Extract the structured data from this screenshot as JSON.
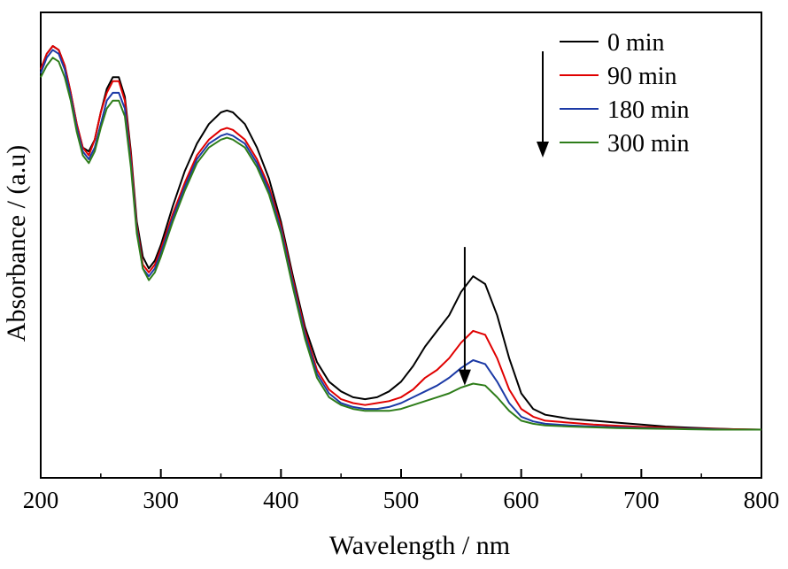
{
  "chart_data": {
    "type": "line",
    "title": "",
    "xlabel": "Wavelength / nm",
    "ylabel": "Absorbance / (a.u)",
    "xlim": [
      200,
      800
    ],
    "ylim": [
      0,
      1
    ],
    "xticks": [
      200,
      300,
      400,
      500,
      600,
      700,
      800
    ],
    "xtick_labels": [
      "200",
      "300",
      "400",
      "500",
      "600",
      "700",
      "800"
    ],
    "yticks_shown": false,
    "grid": false,
    "legend_position": "top-right",
    "annotations": [
      {
        "type": "arrow",
        "direction": "down",
        "location": "legend"
      },
      {
        "type": "arrow",
        "direction": "down",
        "x": 553,
        "y_from": 0.485,
        "y_to": 0.13
      }
    ],
    "series": [
      {
        "name": "0 min",
        "color": "#000000",
        "x": [
          200,
          205,
          210,
          215,
          220,
          225,
          230,
          235,
          240,
          245,
          250,
          255,
          260,
          265,
          270,
          275,
          280,
          285,
          290,
          295,
          300,
          310,
          320,
          330,
          340,
          350,
          355,
          360,
          370,
          380,
          390,
          400,
          410,
          420,
          430,
          440,
          450,
          460,
          470,
          480,
          490,
          500,
          510,
          520,
          530,
          540,
          550,
          560,
          570,
          580,
          590,
          600,
          610,
          620,
          640,
          660,
          680,
          700,
          720,
          740,
          760,
          780,
          800
        ],
        "y": [
          0.94,
          0.98,
          1.0,
          0.99,
          0.95,
          0.88,
          0.8,
          0.74,
          0.73,
          0.76,
          0.83,
          0.89,
          0.92,
          0.92,
          0.87,
          0.73,
          0.55,
          0.46,
          0.43,
          0.45,
          0.49,
          0.59,
          0.68,
          0.75,
          0.8,
          0.83,
          0.835,
          0.83,
          0.8,
          0.74,
          0.66,
          0.55,
          0.41,
          0.28,
          0.19,
          0.14,
          0.115,
          0.1,
          0.095,
          0.1,
          0.115,
          0.14,
          0.18,
          0.23,
          0.27,
          0.31,
          0.37,
          0.41,
          0.39,
          0.31,
          0.2,
          0.11,
          0.07,
          0.055,
          0.045,
          0.04,
          0.035,
          0.03,
          0.025,
          0.022,
          0.02,
          0.018,
          0.017
        ]
      },
      {
        "name": "90 min",
        "color": "#e00000",
        "x": [
          200,
          205,
          210,
          215,
          220,
          225,
          230,
          235,
          240,
          245,
          250,
          255,
          260,
          265,
          270,
          275,
          280,
          285,
          290,
          295,
          300,
          310,
          320,
          330,
          340,
          350,
          355,
          360,
          370,
          380,
          390,
          400,
          410,
          420,
          430,
          440,
          450,
          460,
          470,
          480,
          490,
          500,
          510,
          520,
          530,
          540,
          550,
          560,
          570,
          580,
          590,
          600,
          610,
          620,
          640,
          660,
          680,
          700,
          720,
          740,
          760,
          780,
          800
        ],
        "y": [
          0.94,
          0.98,
          1.0,
          0.99,
          0.95,
          0.88,
          0.8,
          0.74,
          0.72,
          0.76,
          0.83,
          0.88,
          0.91,
          0.91,
          0.86,
          0.72,
          0.54,
          0.44,
          0.42,
          0.44,
          0.48,
          0.57,
          0.65,
          0.72,
          0.76,
          0.785,
          0.79,
          0.785,
          0.76,
          0.71,
          0.64,
          0.54,
          0.4,
          0.27,
          0.17,
          0.12,
          0.095,
          0.085,
          0.08,
          0.085,
          0.09,
          0.1,
          0.12,
          0.15,
          0.17,
          0.2,
          0.24,
          0.27,
          0.26,
          0.2,
          0.12,
          0.07,
          0.05,
          0.04,
          0.035,
          0.03,
          0.027,
          0.024,
          0.022,
          0.02,
          0.019,
          0.018,
          0.017
        ]
      },
      {
        "name": "180 min",
        "color": "#1c3aa6",
        "x": [
          200,
          205,
          210,
          215,
          220,
          225,
          230,
          235,
          240,
          245,
          250,
          255,
          260,
          265,
          270,
          275,
          280,
          285,
          290,
          295,
          300,
          310,
          320,
          330,
          340,
          350,
          355,
          360,
          370,
          380,
          390,
          400,
          410,
          420,
          430,
          440,
          450,
          460,
          470,
          480,
          490,
          500,
          510,
          520,
          530,
          540,
          550,
          560,
          570,
          580,
          590,
          600,
          610,
          620,
          640,
          660,
          680,
          700,
          720,
          740,
          760,
          780,
          800
        ],
        "y": [
          0.93,
          0.97,
          0.99,
          0.98,
          0.94,
          0.87,
          0.79,
          0.73,
          0.71,
          0.74,
          0.8,
          0.86,
          0.88,
          0.88,
          0.84,
          0.7,
          0.53,
          0.43,
          0.41,
          0.43,
          0.47,
          0.56,
          0.64,
          0.71,
          0.75,
          0.77,
          0.775,
          0.77,
          0.75,
          0.7,
          0.63,
          0.53,
          0.39,
          0.26,
          0.16,
          0.11,
          0.085,
          0.075,
          0.07,
          0.07,
          0.075,
          0.085,
          0.1,
          0.115,
          0.13,
          0.15,
          0.175,
          0.195,
          0.185,
          0.14,
          0.085,
          0.05,
          0.038,
          0.032,
          0.028,
          0.025,
          0.023,
          0.021,
          0.02,
          0.019,
          0.018,
          0.017,
          0.017
        ]
      },
      {
        "name": "300 min",
        "color": "#2e7d1a",
        "x": [
          200,
          205,
          210,
          215,
          220,
          225,
          230,
          235,
          240,
          245,
          250,
          255,
          260,
          265,
          270,
          275,
          280,
          285,
          290,
          295,
          300,
          310,
          320,
          330,
          340,
          350,
          355,
          360,
          370,
          380,
          390,
          400,
          410,
          420,
          430,
          440,
          450,
          460,
          470,
          480,
          490,
          500,
          510,
          520,
          530,
          540,
          550,
          560,
          570,
          580,
          590,
          600,
          610,
          620,
          640,
          660,
          680,
          700,
          720,
          740,
          760,
          780,
          800
        ],
        "y": [
          0.92,
          0.95,
          0.97,
          0.96,
          0.92,
          0.86,
          0.78,
          0.72,
          0.7,
          0.73,
          0.79,
          0.84,
          0.86,
          0.86,
          0.82,
          0.69,
          0.52,
          0.43,
          0.4,
          0.42,
          0.46,
          0.55,
          0.63,
          0.7,
          0.74,
          0.76,
          0.765,
          0.76,
          0.74,
          0.69,
          0.62,
          0.52,
          0.38,
          0.25,
          0.15,
          0.1,
          0.08,
          0.07,
          0.065,
          0.065,
          0.065,
          0.07,
          0.08,
          0.09,
          0.1,
          0.11,
          0.125,
          0.135,
          0.13,
          0.1,
          0.065,
          0.04,
          0.032,
          0.028,
          0.025,
          0.023,
          0.021,
          0.02,
          0.019,
          0.018,
          0.017,
          0.017,
          0.017
        ]
      }
    ]
  }
}
